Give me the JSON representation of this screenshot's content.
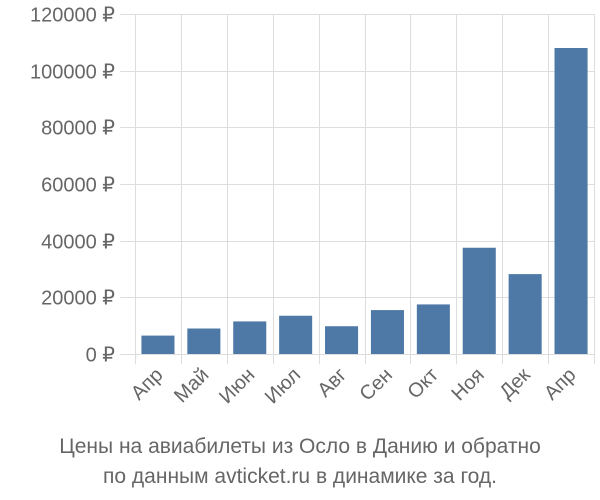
{
  "chart_data": {
    "type": "bar",
    "categories": [
      "Апр",
      "Май",
      "Июн",
      "Июл",
      "Авг",
      "Сен",
      "Окт",
      "Ноя",
      "Дек",
      "Апр"
    ],
    "values": [
      6500,
      9000,
      11500,
      13500,
      9800,
      15500,
      17500,
      37500,
      28200,
      108000
    ],
    "ylim": [
      0,
      120000
    ],
    "yticks": [
      0,
      20000,
      40000,
      60000,
      80000,
      100000,
      120000
    ],
    "ytick_labels": [
      "0 ₽",
      "20000 ₽",
      "40000 ₽",
      "60000 ₽",
      "80000 ₽",
      "100000 ₽",
      "120000 ₽"
    ],
    "grid": true,
    "bar_color": "#4e79a7",
    "grid_color": "#dddddd",
    "text_color": "#666666"
  },
  "caption": {
    "line1": "Цены на авиабилеты из Осло в Данию и обратно",
    "line2": "по данным avticket.ru в динамике за год."
  }
}
